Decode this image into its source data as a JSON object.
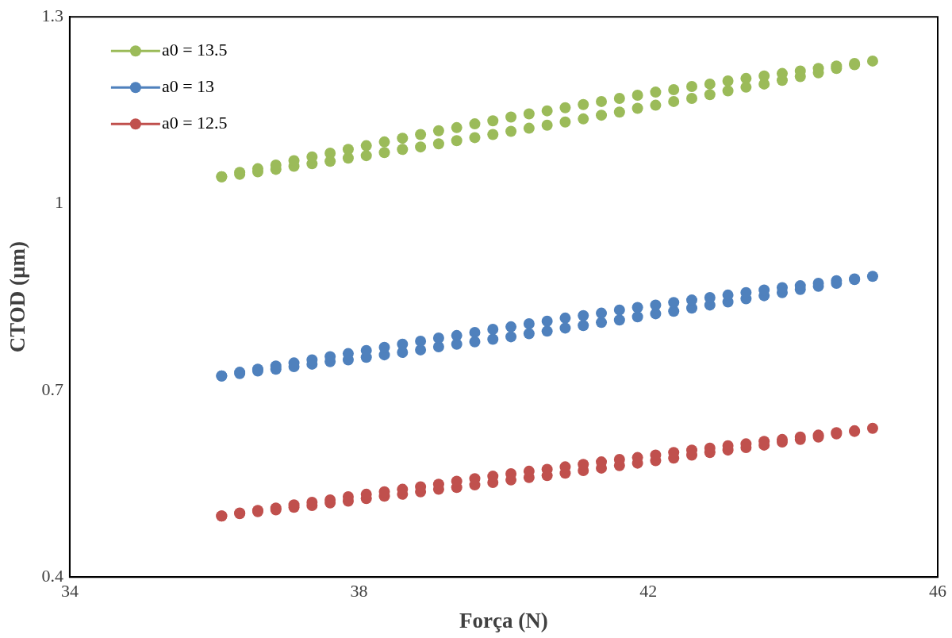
{
  "chart_data": {
    "type": "scatter",
    "xlabel": "Força (N)",
    "ylabel": "CTOD (µm)",
    "xlim": [
      34,
      46
    ],
    "xticks": [
      34,
      38,
      42,
      46
    ],
    "ylim": [
      0.4,
      1.3
    ],
    "yticks": [
      0.4,
      0.7,
      1,
      1.3
    ],
    "grid": false,
    "legend": "top left",
    "marker": "circle",
    "line_style": "solid",
    "x": [
      36.1,
      36.35,
      36.6,
      36.85,
      37.1,
      37.35,
      37.6,
      37.85,
      38.1,
      38.35,
      38.6,
      38.85,
      39.1,
      39.35,
      39.6,
      39.85,
      40.1,
      40.35,
      40.6,
      40.85,
      41.1,
      41.35,
      41.6,
      41.85,
      42.1,
      42.35,
      42.6,
      42.85,
      43.1,
      43.35,
      43.6,
      43.85,
      44.1,
      44.35,
      44.6,
      44.85,
      45.1,
      44.85,
      44.6,
      44.35,
      44.1,
      43.85,
      43.6,
      43.35,
      43.1,
      42.85,
      42.6,
      42.35,
      42.1,
      41.85,
      41.6,
      41.35,
      41.1,
      40.85,
      40.6,
      40.35,
      40.1,
      39.85,
      39.6,
      39.35,
      39.1,
      38.85,
      38.6,
      38.35,
      38.1,
      37.85,
      37.6,
      37.35,
      37.1,
      36.85,
      36.6,
      36.35,
      36.1
    ],
    "series": [
      {
        "name": "a0 = 13.5",
        "color": "#9bbb59",
        "values": [
          1.043,
          1.047,
          1.051,
          1.055,
          1.06,
          1.064,
          1.068,
          1.073,
          1.077,
          1.082,
          1.087,
          1.091,
          1.096,
          1.101,
          1.106,
          1.111,
          1.116,
          1.121,
          1.126,
          1.131,
          1.136,
          1.142,
          1.147,
          1.153,
          1.158,
          1.164,
          1.169,
          1.175,
          1.181,
          1.187,
          1.192,
          1.198,
          1.204,
          1.21,
          1.217,
          1.223,
          1.229,
          1.225,
          1.221,
          1.217,
          1.213,
          1.209,
          1.205,
          1.201,
          1.197,
          1.192,
          1.188,
          1.183,
          1.179,
          1.174,
          1.169,
          1.164,
          1.159,
          1.154,
          1.149,
          1.144,
          1.139,
          1.133,
          1.128,
          1.122,
          1.117,
          1.111,
          1.105,
          1.099,
          1.093,
          1.087,
          1.081,
          1.075,
          1.069,
          1.062,
          1.056,
          1.05,
          1.043
        ]
      },
      {
        "name": "a0 = 13",
        "color": "#4f81bd",
        "values": [
          0.723,
          0.727,
          0.731,
          0.734,
          0.738,
          0.742,
          0.746,
          0.749,
          0.753,
          0.757,
          0.761,
          0.765,
          0.77,
          0.774,
          0.778,
          0.782,
          0.786,
          0.791,
          0.795,
          0.8,
          0.804,
          0.809,
          0.813,
          0.818,
          0.823,
          0.827,
          0.832,
          0.837,
          0.842,
          0.847,
          0.852,
          0.857,
          0.862,
          0.867,
          0.872,
          0.878,
          0.883,
          0.879,
          0.876,
          0.872,
          0.868,
          0.865,
          0.861,
          0.857,
          0.853,
          0.849,
          0.845,
          0.841,
          0.837,
          0.833,
          0.829,
          0.824,
          0.82,
          0.816,
          0.811,
          0.807,
          0.802,
          0.798,
          0.793,
          0.788,
          0.784,
          0.779,
          0.774,
          0.769,
          0.764,
          0.759,
          0.754,
          0.749,
          0.744,
          0.739,
          0.734,
          0.729,
          0.723
        ]
      },
      {
        "name": "a0 = 12.5",
        "color": "#c0504d",
        "values": [
          0.498,
          0.502,
          0.505,
          0.508,
          0.512,
          0.515,
          0.519,
          0.522,
          0.526,
          0.53,
          0.533,
          0.537,
          0.541,
          0.544,
          0.548,
          0.552,
          0.556,
          0.56,
          0.563,
          0.567,
          0.571,
          0.575,
          0.579,
          0.583,
          0.587,
          0.591,
          0.596,
          0.6,
          0.604,
          0.608,
          0.612,
          0.617,
          0.621,
          0.625,
          0.63,
          0.634,
          0.639,
          0.635,
          0.632,
          0.628,
          0.625,
          0.621,
          0.618,
          0.614,
          0.611,
          0.607,
          0.604,
          0.6,
          0.596,
          0.592,
          0.589,
          0.585,
          0.581,
          0.577,
          0.573,
          0.57,
          0.566,
          0.562,
          0.558,
          0.554,
          0.549,
          0.545,
          0.541,
          0.537,
          0.533,
          0.529,
          0.524,
          0.52,
          0.516,
          0.511,
          0.507,
          0.503,
          0.498
        ]
      }
    ]
  }
}
